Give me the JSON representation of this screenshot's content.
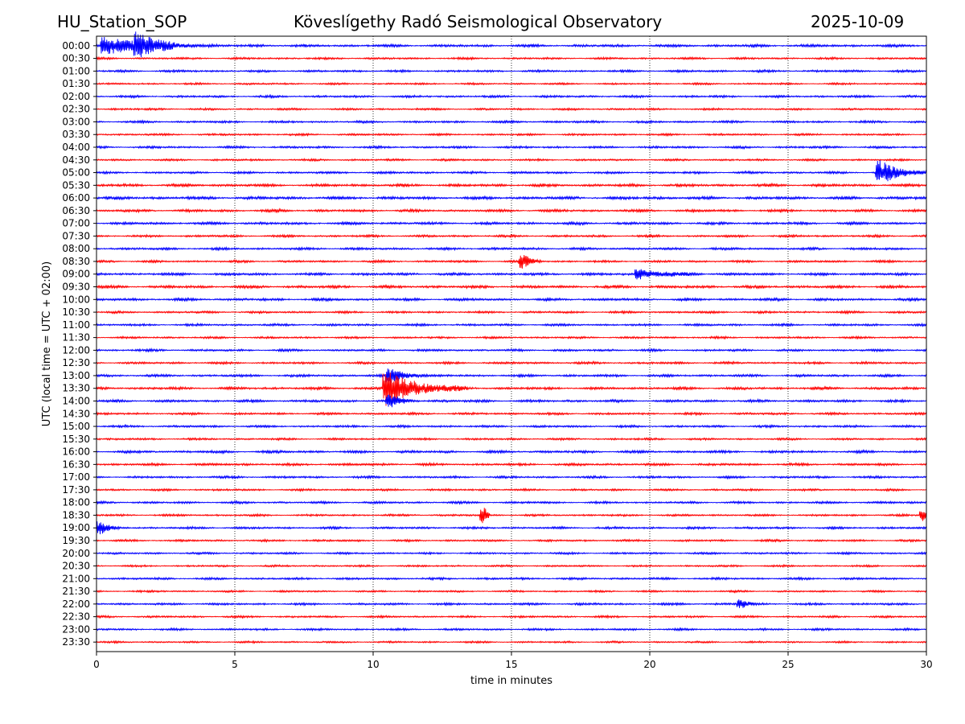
{
  "header": {
    "station": "HU_Station_SOP",
    "title": "Köveslígethy Radó Seismological Observatory",
    "date": "2025-10-09"
  },
  "chart_data": {
    "type": "helicorder",
    "title": "Köveslígethy Radó Seismological Observatory",
    "xlabel": "time in minutes",
    "ylabel": "UTC (local time = UTC + 02:00)",
    "xlim": [
      0,
      30
    ],
    "xticks": [
      "0",
      "5",
      "10",
      "15",
      "20",
      "25",
      "30"
    ],
    "xtick_values": [
      0,
      5,
      10,
      15,
      20,
      25,
      30
    ],
    "grid_x": [
      5,
      10,
      15,
      20,
      25
    ],
    "row_labels": [
      "00:00",
      "00:30",
      "01:00",
      "01:30",
      "02:00",
      "02:30",
      "03:00",
      "03:30",
      "04:00",
      "04:30",
      "05:00",
      "05:30",
      "06:00",
      "06:30",
      "07:00",
      "07:30",
      "08:00",
      "08:30",
      "09:00",
      "09:30",
      "10:00",
      "10:30",
      "11:00",
      "11:30",
      "12:00",
      "12:30",
      "13:00",
      "13:30",
      "14:00",
      "14:30",
      "15:00",
      "15:30",
      "16:00",
      "16:30",
      "17:00",
      "17:30",
      "18:00",
      "18:30",
      "19:00",
      "19:30",
      "20:00",
      "20:30",
      "21:00",
      "21:30",
      "22:00",
      "22:30",
      "23:00",
      "23:30"
    ],
    "trace_colors": [
      "#0000ff",
      "#ff0000"
    ],
    "base_noise": [
      0.7,
      0.55,
      0.6,
      0.5,
      0.6,
      0.55,
      0.6,
      0.55,
      0.6,
      0.55,
      0.6,
      0.75,
      0.8,
      0.7,
      0.7,
      0.6,
      0.65,
      0.6,
      0.7,
      0.75,
      0.7,
      0.6,
      0.6,
      0.55,
      0.6,
      0.6,
      0.65,
      0.7,
      0.7,
      0.6,
      0.6,
      0.55,
      0.7,
      0.65,
      0.6,
      0.55,
      0.6,
      0.55,
      0.6,
      0.55,
      0.55,
      0.5,
      0.6,
      0.5,
      0.6,
      0.55,
      0.55,
      0.5
    ],
    "events": [
      {
        "row": 0,
        "minute": 0.2,
        "amplitude": 1.6,
        "duration": 4.2
      },
      {
        "row": 0,
        "minute": 1.4,
        "amplitude": 2.0,
        "duration": 1.5
      },
      {
        "row": 10,
        "minute": 28.2,
        "amplitude": 2.2,
        "duration": 1.8
      },
      {
        "row": 17,
        "minute": 15.3,
        "amplitude": 1.2,
        "duration": 0.8
      },
      {
        "row": 18,
        "minute": 19.5,
        "amplitude": 0.9,
        "duration": 2.5
      },
      {
        "row": 26,
        "minute": 10.5,
        "amplitude": 1.4,
        "duration": 1.5
      },
      {
        "row": 27,
        "minute": 10.4,
        "amplitude": 3.2,
        "duration": 3.0
      },
      {
        "row": 28,
        "minute": 10.5,
        "amplitude": 1.0,
        "duration": 1.2
      },
      {
        "row": 37,
        "minute": 13.9,
        "amplitude": 1.4,
        "duration": 0.3
      },
      {
        "row": 37,
        "minute": 29.8,
        "amplitude": 1.2,
        "duration": 0.2
      },
      {
        "row": 38,
        "minute": 0.0,
        "amplitude": 1.1,
        "duration": 0.8
      },
      {
        "row": 44,
        "minute": 23.2,
        "amplitude": 0.8,
        "duration": 0.6
      }
    ]
  }
}
